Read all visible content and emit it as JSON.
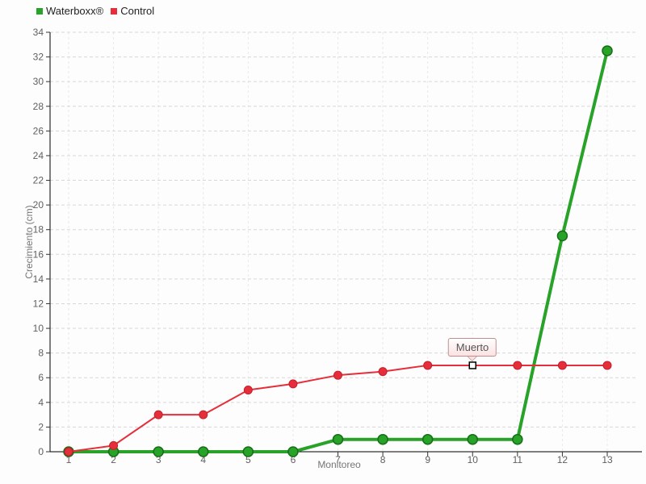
{
  "legend": {
    "items": [
      {
        "label": "Waterboxx®",
        "color": "#28a228"
      },
      {
        "label": "Control",
        "color": "#e62e3a"
      }
    ]
  },
  "chart_data": {
    "type": "line",
    "title": "",
    "xlabel": "Monitoreo",
    "ylabel": "Crecimiento (cm)",
    "x": [
      1,
      2,
      3,
      4,
      5,
      6,
      7,
      8,
      9,
      10,
      11,
      12,
      13
    ],
    "series": [
      {
        "name": "Waterboxx®",
        "color": "#28a228",
        "marker_border": "#166e16",
        "line_width": 4,
        "values": [
          0,
          0,
          0,
          0,
          0,
          0,
          1,
          1,
          1,
          1,
          1,
          17.5,
          32.5
        ]
      },
      {
        "name": "Control",
        "color": "#e62e3a",
        "marker_border": "#c21f2c",
        "line_width": 2,
        "values": [
          0,
          0.5,
          3,
          3,
          5,
          5.5,
          6.2,
          6.5,
          7,
          7,
          7,
          7,
          7
        ]
      }
    ],
    "ylim": [
      0,
      34
    ],
    "yticks": [
      0,
      2,
      4,
      6,
      8,
      10,
      12,
      14,
      16,
      18,
      20,
      22,
      24,
      26,
      28,
      30,
      32,
      34
    ],
    "grid": true,
    "grid_style": "dashed",
    "legend_position": "top-left",
    "annotation": {
      "label": "Muerto",
      "x": 10,
      "y": 7,
      "series": "Control",
      "marker": "open-square"
    },
    "colors": {
      "axis": "#000000",
      "h_grid": "#d8d8d8",
      "v_grid": "#e9e9e9",
      "tick_text": "#606060"
    }
  }
}
